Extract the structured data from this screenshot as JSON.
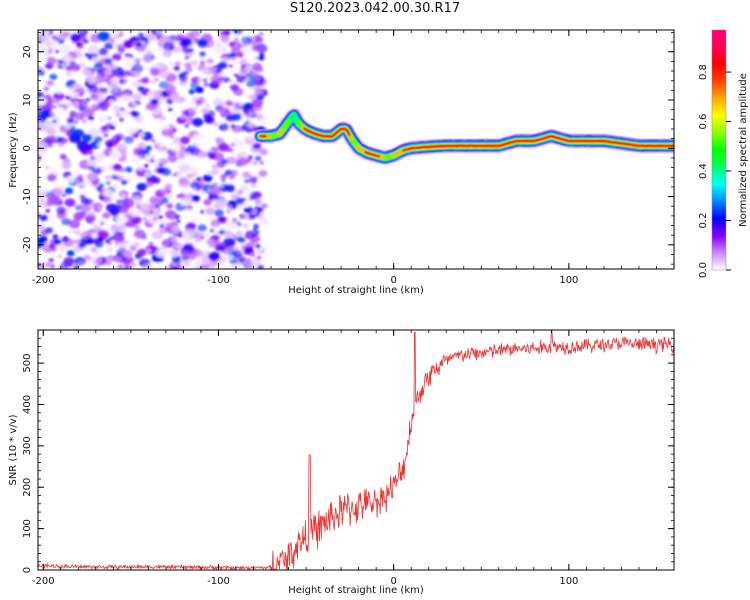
{
  "title": "S120.2023.042.00.30.R17",
  "chart_data": [
    {
      "type": "heatmap",
      "xlabel": "Height of straight line (km)",
      "ylabel": "Frequency (Hz)",
      "xlim": [
        -203,
        160
      ],
      "ylim": [
        -25,
        24.5
      ],
      "xticks": [
        -200,
        -100,
        0,
        100
      ],
      "yticks": [
        -20,
        -10,
        0,
        10,
        20
      ],
      "colorbar": {
        "label": "Normalized spectral amplitude",
        "range": [
          0,
          0.97
        ],
        "ticks": [
          "0.0",
          "0.2",
          "0.4",
          "0.6",
          "0.8"
        ],
        "tick_values": [
          0,
          0.2,
          0.4,
          0.6,
          0.8
        ],
        "colors": [
          "#ffffff",
          "#cc88ff",
          "#8800ff",
          "#0000ff",
          "#0088ff",
          "#00ffff",
          "#00ff66",
          "#00ff00",
          "#88ff00",
          "#ffff00",
          "#ffaa00",
          "#ff4400",
          "#ff0000",
          "#ff0055",
          "#ff0077"
        ]
      },
      "noise_region": {
        "x_range": [
          -203,
          -74
        ],
        "y_range": [
          -25,
          24.5
        ],
        "amplitude_range": [
          0.0,
          0.25
        ]
      },
      "ridge": {
        "x": [
          -76,
          -70,
          -65,
          -60,
          -57,
          -54,
          -50,
          -45,
          -40,
          -35,
          -30,
          -27,
          -24,
          -20,
          -15,
          -10,
          -5,
          0,
          5,
          10,
          20,
          30,
          40,
          50,
          60,
          70,
          80,
          90,
          100,
          110,
          120,
          130,
          140,
          150,
          160
        ],
        "frequency": [
          2.5,
          2.5,
          3,
          5.5,
          7,
          5,
          3.8,
          3,
          2.5,
          2.5,
          4,
          4,
          2,
          0,
          -1,
          -1.5,
          -2,
          -1.5,
          -0.5,
          0,
          0.3,
          0.5,
          0.5,
          0.5,
          0.5,
          1.5,
          1.5,
          2.5,
          1.5,
          1.5,
          1.5,
          1,
          0.5,
          0.5,
          0.5
        ],
        "amplitude": [
          0.9,
          0.6,
          0.7,
          0.5,
          0.45,
          0.6,
          0.85,
          0.9,
          0.85,
          0.8,
          0.9,
          0.85,
          0.6,
          0.7,
          0.85,
          0.85,
          0.6,
          0.7,
          0.8,
          0.9,
          0.9,
          0.9,
          0.9,
          0.9,
          0.85,
          0.9,
          0.92,
          0.95,
          0.9,
          0.9,
          0.9,
          0.88,
          0.9,
          0.9,
          0.88
        ]
      }
    },
    {
      "type": "line",
      "xlabel": "Height of straight line (km)",
      "ylabel": "SNR (10 * v/v)",
      "xlim": [
        -203,
        160
      ],
      "ylim": [
        0,
        580
      ],
      "xticks": [
        -200,
        -100,
        0,
        100
      ],
      "yticks": [
        0,
        100,
        200,
        300,
        400,
        500
      ],
      "color": "#ee3333",
      "x": [
        -203,
        -180,
        -160,
        -140,
        -120,
        -100,
        -80,
        -70,
        -65,
        -60,
        -55,
        -50,
        -45,
        -40,
        -35,
        -30,
        -25,
        -20,
        -15,
        -10,
        -5,
        0,
        5,
        8,
        10,
        12,
        15,
        20,
        25,
        30,
        35,
        40,
        50,
        60,
        70,
        80,
        90,
        100,
        110,
        120,
        130,
        140,
        150,
        160
      ],
      "y": [
        10,
        8,
        7,
        8,
        7,
        6,
        5,
        6,
        15,
        30,
        60,
        80,
        95,
        110,
        130,
        140,
        150,
        155,
        160,
        165,
        180,
        200,
        240,
        300,
        360,
        400,
        430,
        470,
        490,
        505,
        515,
        520,
        525,
        530,
        535,
        535,
        540,
        540,
        542,
        545,
        548,
        545,
        545,
        545
      ],
      "spikes": [
        {
          "x": -48,
          "y": 278
        },
        {
          "x": 12,
          "y": 575
        },
        {
          "x": 90,
          "y": 582
        }
      ]
    }
  ]
}
